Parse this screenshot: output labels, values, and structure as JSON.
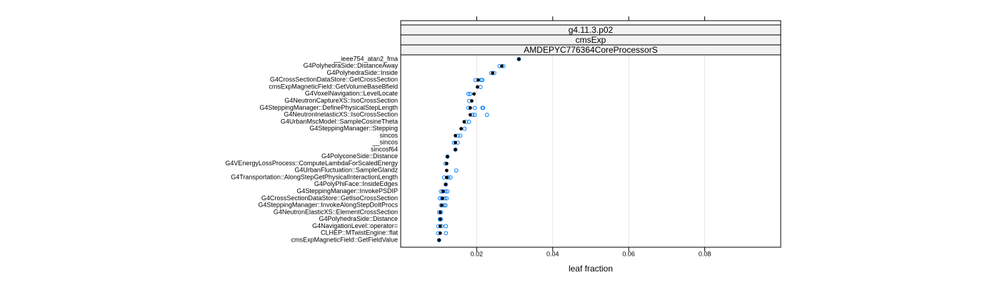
{
  "chart_data": {
    "type": "dot",
    "strips": [
      "g4.11.3.p02",
      "cmsExp",
      "AMDEPYC776364CoreProcessorS"
    ],
    "x_label": "leaf fraction",
    "categories": [
      "__ieee754_atan2_fma",
      "G4PolyhedraSide::DistanceAway",
      "G4PolyhedraSide::Inside",
      "G4CrossSectionDataStore::GetCrossSection",
      "cmsExpMagneticField::GetVolumeBaseBfield",
      "G4VoxelNavigation::LevelLocate",
      "G4NeutronCaptureXS::IsoCrossSection",
      "G4SteppingManager::DefinePhysicalStepLength",
      "G4NeutronInelasticXS::IsoCrossSection",
      "G4UrbanMscModel::SampleCosineTheta",
      "G4SteppingManager::Stepping",
      "sincos",
      "__sincos",
      "sincosf64",
      "G4PolyconeSide::Distance",
      "G4VEnergyLossProcess::ComputeLambdaForScaledEnergy",
      "G4UrbanFluctuation::SampleGlandz",
      "G4Transportation::AlongStepGetPhysicalInteractionLength",
      "G4PolyPhiFace::InsideEdges",
      "G4SteppingManager::InvokePSDIP",
      "G4CrossSectionDataStore::GetIsoCrossSection",
      "G4SteppingManager::InvokeAlongStepDoItProcs",
      "G4NeutronElasticXS::ElementCrossSection",
      "G4PolyhedraSide::Distance",
      "G4NavigationLevel::operator=",
      "CLHEP::MTwistEngine::flat",
      "cmsExpMagneticField::GetFieldValue"
    ],
    "values": [
      0.0311,
      0.0266,
      0.0242,
      0.0204,
      0.0202,
      0.0193,
      0.0187,
      0.0183,
      0.0183,
      0.0167,
      0.0159,
      0.0144,
      0.0144,
      0.0144,
      0.0123,
      0.0121,
      0.0121,
      0.0121,
      0.0118,
      0.0112,
      0.011,
      0.0108,
      0.0104,
      0.0104,
      0.0104,
      0.0104,
      0.0101
    ],
    "color": "#000000",
    "runs": [
      [
        0.0311
      ],
      [
        0.026,
        0.027
      ],
      [
        0.0238,
        0.0246
      ],
      [
        0.0197,
        0.0212,
        0.0215
      ],
      [
        0.021
      ],
      [
        0.0178,
        0.0183
      ],
      [
        0.018
      ],
      [
        0.0178,
        0.0195,
        0.0215,
        0.0217
      ],
      [
        0.0189,
        0.0195,
        0.0227
      ],
      [
        0.0172,
        0.018
      ],
      [
        0.0168
      ],
      [
        0.015,
        0.0157
      ],
      [
        0.014,
        0.015
      ],
      [
        0.0144
      ],
      [
        0.0123
      ],
      [
        0.0118
      ],
      [
        0.0146
      ],
      [
        0.0114,
        0.0125,
        0.0131
      ],
      [
        0.0119
      ],
      [
        0.0106,
        0.011,
        0.0118,
        0.0123
      ],
      [
        0.0103,
        0.0108,
        0.0116,
        0.0121
      ],
      [
        0.0106,
        0.0114,
        0.0118
      ],
      [
        0.0101,
        0.0106
      ],
      [
        0.0103,
        0.0106
      ],
      [
        0.0099,
        0.0108,
        0.0119
      ],
      [
        0.0099,
        0.0119
      ],
      [
        0.0101
      ]
    ],
    "runs_color": "#0080ff",
    "xlim": [
      0,
      0.1
    ],
    "xticks": [
      0.02,
      0.04,
      0.06,
      0.08
    ],
    "grid": true
  }
}
